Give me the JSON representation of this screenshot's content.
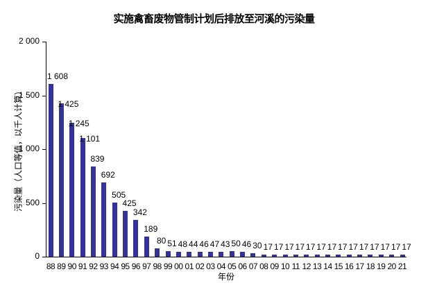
{
  "chart_data": {
    "type": "bar",
    "title": "实施禽畜废物管制计划后排放至河溪的污染量",
    "xlabel": "年份",
    "ylabel": "污染量（人口等值，以千人计算）",
    "ylim": [
      0,
      2000
    ],
    "yticks": [
      "0",
      "500",
      "1 000",
      "1 500",
      "2 000"
    ],
    "ytick_values": [
      0,
      500,
      1000,
      1500,
      2000
    ],
    "grid": false,
    "legend": null,
    "categories": [
      "88",
      "89",
      "90",
      "91",
      "92",
      "93",
      "94",
      "95",
      "96",
      "97",
      "98",
      "99",
      "00",
      "01",
      "02",
      "03",
      "04",
      "05",
      "06",
      "07",
      "08",
      "09",
      "10",
      "11",
      "12",
      "13",
      "14",
      "15",
      "16",
      "17",
      "18",
      "19",
      "20",
      "21"
    ],
    "values": [
      1608,
      1425,
      1245,
      1101,
      839,
      692,
      505,
      425,
      342,
      189,
      80,
      51,
      48,
      44,
      46,
      47,
      43,
      50,
      46,
      30,
      17,
      17,
      17,
      17,
      17,
      17,
      17,
      17,
      17,
      17,
      17,
      17,
      17,
      17
    ],
    "value_labels": [
      "1 608",
      "1 425",
      "1 245",
      "1 101",
      "839",
      "692",
      "505",
      "425",
      "342",
      "189",
      "80",
      "51",
      "48",
      "44",
      "46",
      "47",
      "43",
      "50",
      "46",
      "30",
      "17",
      "17",
      "17",
      "17",
      "17",
      "17",
      "17",
      "17",
      "17",
      "17",
      "17",
      "17",
      "17",
      "17"
    ],
    "bar_color": "#333399"
  }
}
